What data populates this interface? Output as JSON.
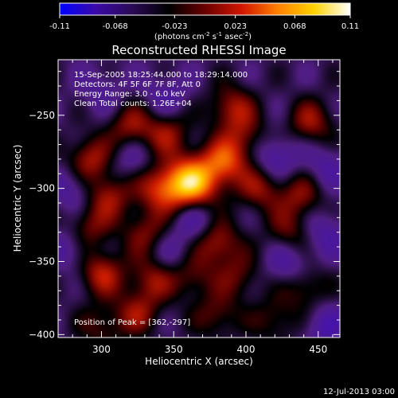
{
  "colorbar": {
    "ticks": [
      "-0.11",
      "-0.068",
      "-0.023",
      "0.023",
      "0.068",
      "0.11"
    ],
    "tick_values": [
      -0.11,
      -0.068,
      -0.023,
      0.023,
      0.068,
      0.11
    ],
    "range": [
      -0.11,
      0.11
    ],
    "unit_label": "(photons cm",
    "unit_exp1": "-2",
    "unit_mid": " s",
    "unit_exp2": "-1",
    "unit_tail": " asec",
    "unit_exp3": "-2",
    "unit_close": ")",
    "colormap": [
      "#0000ff",
      "#3b0aa8",
      "#2a0a55",
      "#000000",
      "#6a0000",
      "#d01500",
      "#ff7f00",
      "#ffd200",
      "#ffffff"
    ]
  },
  "chart_data": {
    "type": "heatmap",
    "title": "Reconstructed RHESSI Image",
    "xlabel": "Heliocentric X (arcsec)",
    "ylabel": "Heliocentric Y (arcsec)",
    "xlim": [
      270,
      465
    ],
    "ylim": [
      -402,
      -212
    ],
    "xticks": [
      300,
      350,
      400,
      450
    ],
    "xtick_labels": [
      "300",
      "350",
      "400",
      "450"
    ],
    "yticks": [
      -250,
      -300,
      -350,
      -400
    ],
    "ytick_labels": [
      "−250",
      "−300",
      "−350",
      "−400"
    ],
    "peak": [
      362,
      -297
    ],
    "peak_value": 0.11,
    "blobs": [
      {
        "x": 362,
        "y": -297,
        "a": 1.0
      },
      {
        "x": 385,
        "y": -282,
        "a": 0.6
      },
      {
        "x": 340,
        "y": -300,
        "a": 0.5
      },
      {
        "x": 292,
        "y": -280,
        "a": 0.48
      },
      {
        "x": 320,
        "y": -258,
        "a": 0.42
      },
      {
        "x": 345,
        "y": -262,
        "a": 0.4
      },
      {
        "x": 305,
        "y": -305,
        "a": 0.45
      },
      {
        "x": 410,
        "y": -300,
        "a": 0.4
      },
      {
        "x": 445,
        "y": -255,
        "a": 0.42
      },
      {
        "x": 438,
        "y": -305,
        "a": 0.38
      },
      {
        "x": 390,
        "y": -245,
        "a": 0.45
      },
      {
        "x": 400,
        "y": -265,
        "a": 0.32
      },
      {
        "x": 290,
        "y": -328,
        "a": 0.4
      },
      {
        "x": 330,
        "y": -330,
        "a": 0.36
      },
      {
        "x": 380,
        "y": -337,
        "a": 0.48
      },
      {
        "x": 430,
        "y": -330,
        "a": 0.32
      },
      {
        "x": 300,
        "y": -358,
        "a": 0.5
      },
      {
        "x": 335,
        "y": -362,
        "a": 0.38
      },
      {
        "x": 362,
        "y": -360,
        "a": 0.33
      },
      {
        "x": 395,
        "y": -360,
        "a": 0.3
      },
      {
        "x": 440,
        "y": -367,
        "a": 0.35
      },
      {
        "x": 325,
        "y": -385,
        "a": 0.38
      },
      {
        "x": 380,
        "y": -387,
        "a": 0.32
      },
      {
        "x": 300,
        "y": -395,
        "a": 0.28
      },
      {
        "x": 420,
        "y": -390,
        "a": 0.28
      },
      {
        "x": 430,
        "y": -352,
        "a": -0.32
      },
      {
        "x": 455,
        "y": -330,
        "a": -0.28
      },
      {
        "x": 280,
        "y": -340,
        "a": -0.3
      },
      {
        "x": 300,
        "y": -233,
        "a": -0.2
      },
      {
        "x": 420,
        "y": -278,
        "a": -0.35
      },
      {
        "x": 365,
        "y": -320,
        "a": -0.35
      },
      {
        "x": 345,
        "y": -237,
        "a": -0.25
      },
      {
        "x": 455,
        "y": -395,
        "a": -0.3
      },
      {
        "x": 280,
        "y": -300,
        "a": -0.28
      },
      {
        "x": 320,
        "y": -280,
        "a": -0.22
      },
      {
        "x": 350,
        "y": -345,
        "a": -0.2
      },
      {
        "x": 455,
        "y": -285,
        "a": -0.25
      }
    ],
    "annotations": {
      "time": "15-Sep-2005 18:25:44.000 to 18:29:14.000",
      "detectors": "Detectors: 4F 5F 6F 7F 8F, Att 0",
      "energy": "Energy Range: 3.0 - 6.0 keV",
      "clean": "Clean     Total counts: 1.26E+04",
      "peak_text": "Position of Peak = [362,-297]"
    }
  },
  "footer": {
    "date": "12-Jul-2013 03:00"
  }
}
